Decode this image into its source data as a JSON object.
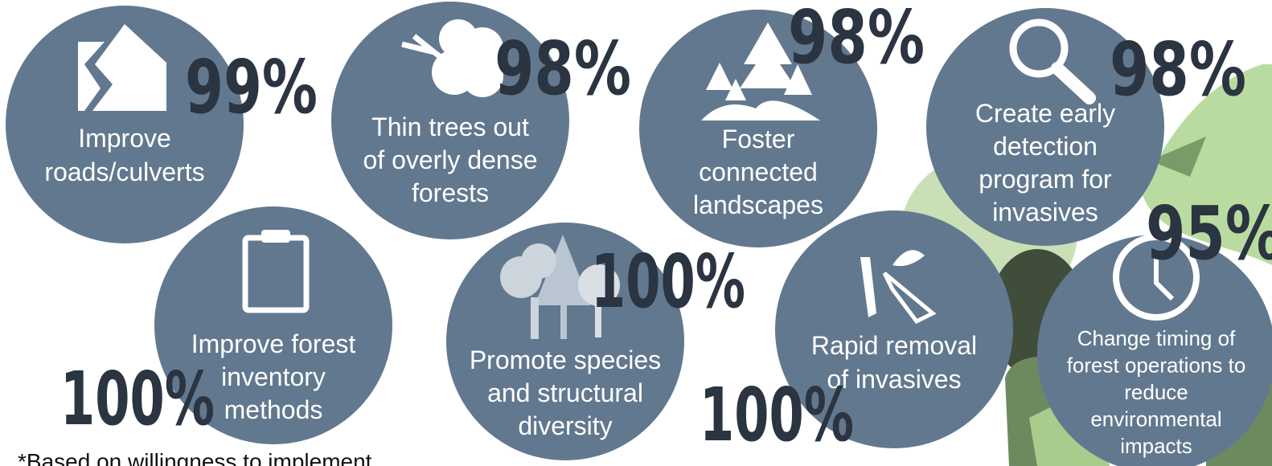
{
  "items": [
    {
      "label": [
        "Improve",
        "roads/culverts"
      ],
      "percent": "99%"
    },
    {
      "label": [
        "Thin trees out",
        "of overly dense",
        "forests"
      ],
      "percent": "98%"
    },
    {
      "label": [
        "Foster",
        "connected",
        "landscapes"
      ],
      "percent": "98%"
    },
    {
      "label": [
        "Create early",
        "detection",
        "program for",
        "invasives"
      ],
      "percent": "98%"
    },
    {
      "label": [
        "Improve forest",
        "inventory",
        "methods"
      ],
      "percent": "100%"
    },
    {
      "label": [
        "Promote species",
        "and structural",
        "diversity"
      ],
      "percent": "100%"
    },
    {
      "label": [
        "Rapid removal",
        "of invasives"
      ],
      "percent": "100%"
    },
    {
      "label": [
        "Change timing of",
        "forest operations to",
        "reduce",
        "environmental",
        "impacts"
      ],
      "percent": "95%"
    }
  ],
  "footnote": "*Based on willingness to implement"
}
